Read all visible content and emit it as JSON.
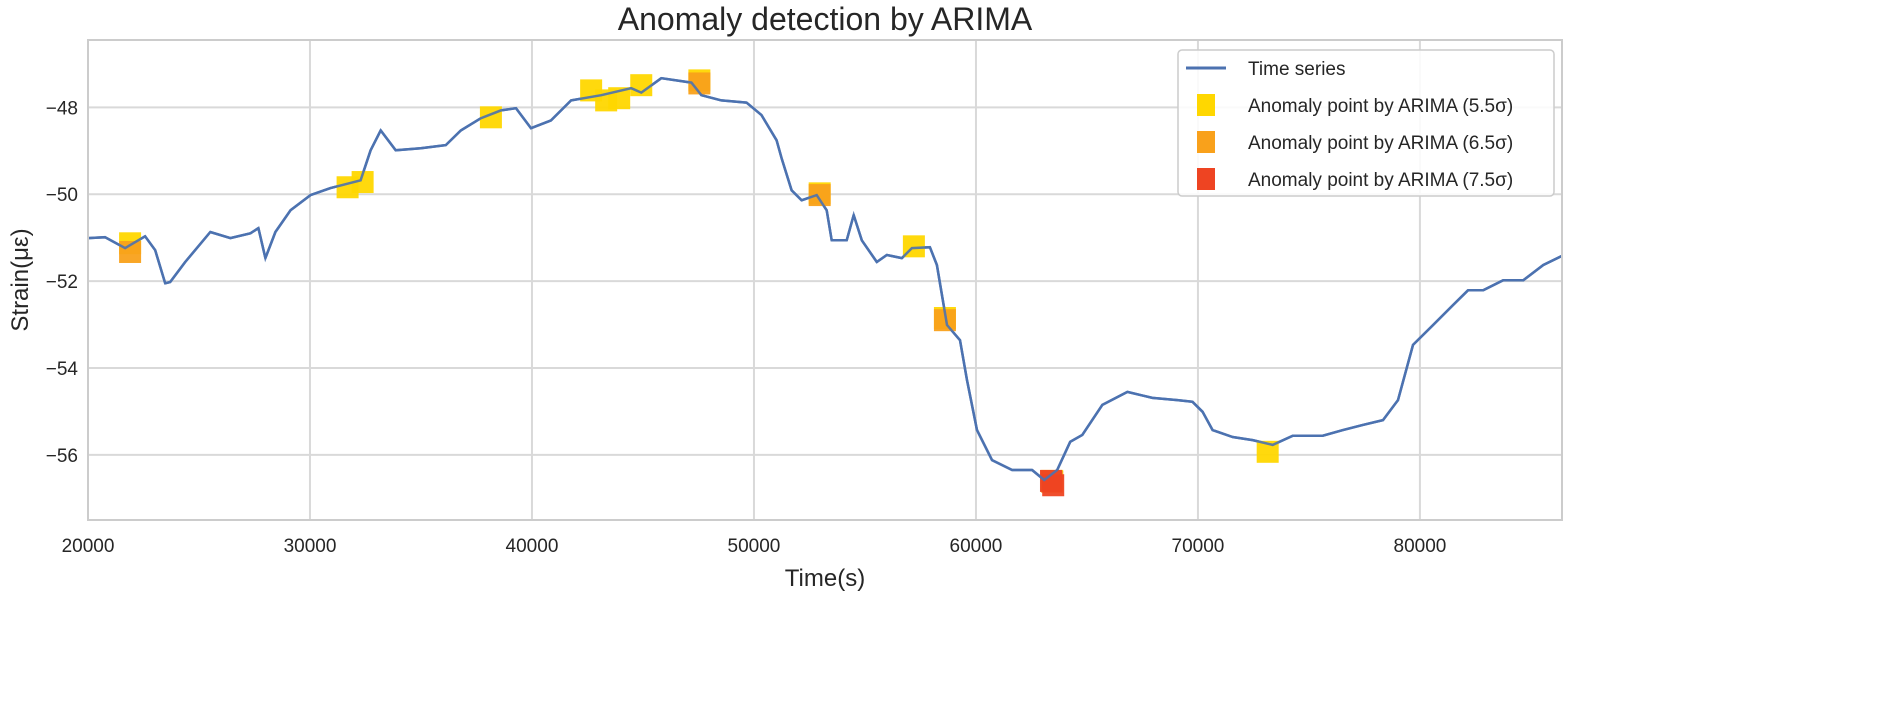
{
  "chart_data": {
    "type": "line",
    "title": "Anomaly detection by ARIMA",
    "xlabel": "Time(s)",
    "ylabel": "Strain(με)",
    "xlim": [
      20000,
      86400
    ],
    "ylim": [
      -57.5,
      -46.45
    ],
    "xticks": [
      20000,
      30000,
      40000,
      50000,
      60000,
      70000,
      80000
    ],
    "yticks": [
      -48,
      -50,
      -52,
      -54,
      -56
    ],
    "xtick_labels": [
      "20000",
      "30000",
      "40000",
      "50000",
      "60000",
      "70000",
      "80000"
    ],
    "ytick_labels": [
      "−48",
      "−50",
      "−52",
      "−54",
      "−56"
    ],
    "grid": true,
    "legend_position": "top-right",
    "series": [
      {
        "name": "Time series",
        "kind": "line",
        "color": "#4c72b0",
        "x": [
          20000,
          20768,
          21670,
          22573,
          23025,
          23477,
          23702,
          24380,
          25508,
          26411,
          27314,
          27676,
          27992,
          28443,
          29120,
          30023,
          30926,
          31604,
          32281,
          32732,
          33184,
          33861,
          34990,
          36119,
          36796,
          37699,
          38602,
          39279,
          39956,
          40859,
          41762,
          43117,
          44471,
          44923,
          45826,
          47180,
          47632,
          48535,
          49664,
          50341,
          51018,
          51244,
          51696,
          52147,
          52825,
          53276,
          53502,
          54179,
          54495,
          54856,
          55533,
          55985,
          56662,
          57113,
          57926,
          58242,
          58694,
          59281,
          59597,
          60048,
          60725,
          61628,
          62531,
          63073,
          63660,
          64247,
          64789,
          65692,
          66821,
          67950,
          69078,
          69756,
          70208,
          70659,
          71562,
          72465,
          73368,
          74271,
          75626,
          76529,
          77432,
          78335,
          79012,
          79689,
          80592,
          81495,
          82172,
          82850,
          83752,
          84655,
          85558,
          86400
        ],
        "y": [
          -51.01,
          -50.99,
          -51.24,
          -50.97,
          -51.29,
          -52.05,
          -52.02,
          -51.56,
          -50.87,
          -51.01,
          -50.9,
          -50.78,
          -51.47,
          -50.87,
          -50.37,
          -50.02,
          -49.86,
          -49.77,
          -49.68,
          -48.99,
          -48.53,
          -48.99,
          -48.94,
          -48.87,
          -48.53,
          -48.25,
          -48.07,
          -48.02,
          -48.48,
          -48.3,
          -47.84,
          -47.72,
          -47.56,
          -47.66,
          -47.33,
          -47.43,
          -47.72,
          -47.84,
          -47.89,
          -48.18,
          -48.76,
          -49.17,
          -49.91,
          -50.14,
          -50.02,
          -50.37,
          -51.06,
          -51.06,
          -50.48,
          -51.06,
          -51.56,
          -51.4,
          -51.47,
          -51.24,
          -51.22,
          -51.63,
          -53.01,
          -53.36,
          -54.28,
          -55.43,
          -56.12,
          -56.35,
          -56.35,
          -56.58,
          -56.35,
          -55.7,
          -55.54,
          -54.85,
          -54.55,
          -54.69,
          -54.74,
          -54.78,
          -55.01,
          -55.43,
          -55.59,
          -55.66,
          -55.77,
          -55.56,
          -55.56,
          -55.43,
          -55.31,
          -55.2,
          -54.74,
          -53.47,
          -53.01,
          -52.55,
          -52.21,
          -52.21,
          -51.98,
          -51.98,
          -51.63,
          -51.42
        ]
      },
      {
        "name": "Anomaly point by ARIMA (5.5σ)",
        "kind": "scatter",
        "color": "#ffd700",
        "x": [
          21896,
          31694,
          32371,
          38150,
          42665,
          43342,
          43929,
          44923,
          47541,
          52960,
          57204,
          58603,
          63434,
          73142
        ],
        "y": [
          -51.13,
          -49.84,
          -49.72,
          -48.23,
          -47.61,
          -47.84,
          -47.79,
          -47.49,
          -47.38,
          -49.98,
          -51.2,
          -52.85,
          -56.6,
          -55.93
        ]
      },
      {
        "name": "Anomaly point by ARIMA (6.5σ)",
        "kind": "scatter",
        "color": "#f9a11b",
        "x": [
          21896,
          47541,
          52960,
          58603,
          63434
        ],
        "y": [
          -51.33,
          -47.45,
          -50.02,
          -52.9,
          -56.62
        ]
      },
      {
        "name": "Anomaly point by ARIMA (7.5σ)",
        "kind": "scatter",
        "color": "#ee4422",
        "x": [
          63380,
          63480
        ],
        "y": [
          -56.6,
          -56.7
        ]
      }
    ]
  }
}
